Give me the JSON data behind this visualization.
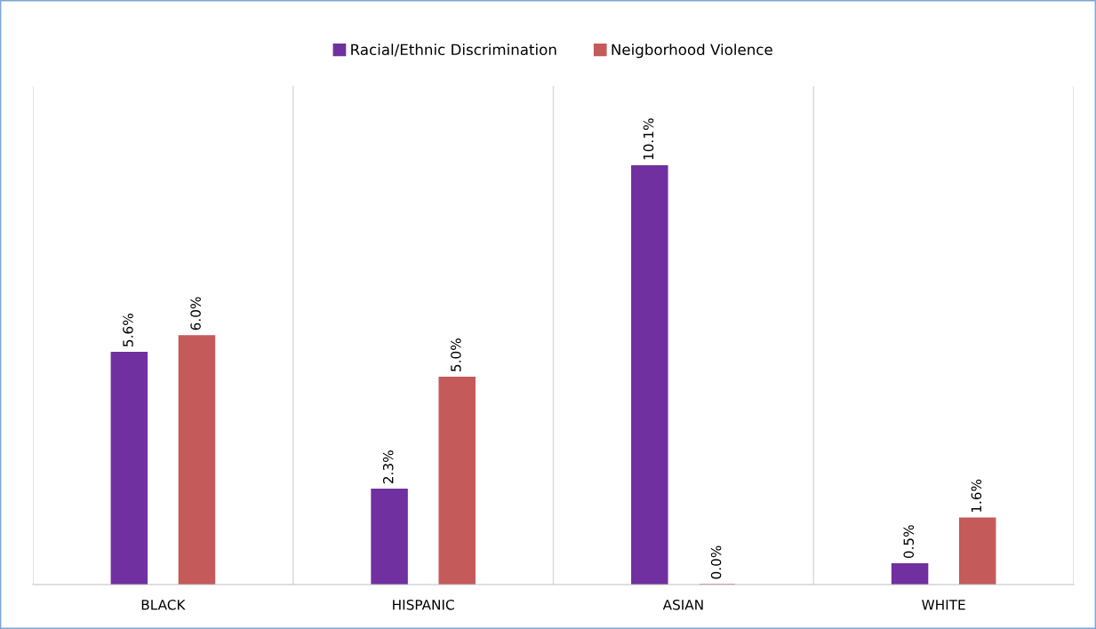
{
  "chart_data": {
    "type": "bar",
    "categories": [
      "BLACK",
      "HISPANIC",
      "ASIAN",
      "WHITE"
    ],
    "series": [
      {
        "name": "Racial/Ethnic Discrimination",
        "color": "#7030a0",
        "values": [
          5.6,
          2.3,
          10.1,
          0.5
        ],
        "value_labels": [
          "5.6%",
          "2.3%",
          "10.1%",
          "0.5%"
        ]
      },
      {
        "name": "Neigborhood Violence",
        "color": "#c55a5a",
        "values": [
          6.0,
          5.0,
          0.0,
          1.6
        ],
        "value_labels": [
          "6.0%",
          "5.0%",
          "0.0%",
          "1.6%"
        ]
      }
    ],
    "grid": "x",
    "legend": "top",
    "tick_labels": "x"
  }
}
